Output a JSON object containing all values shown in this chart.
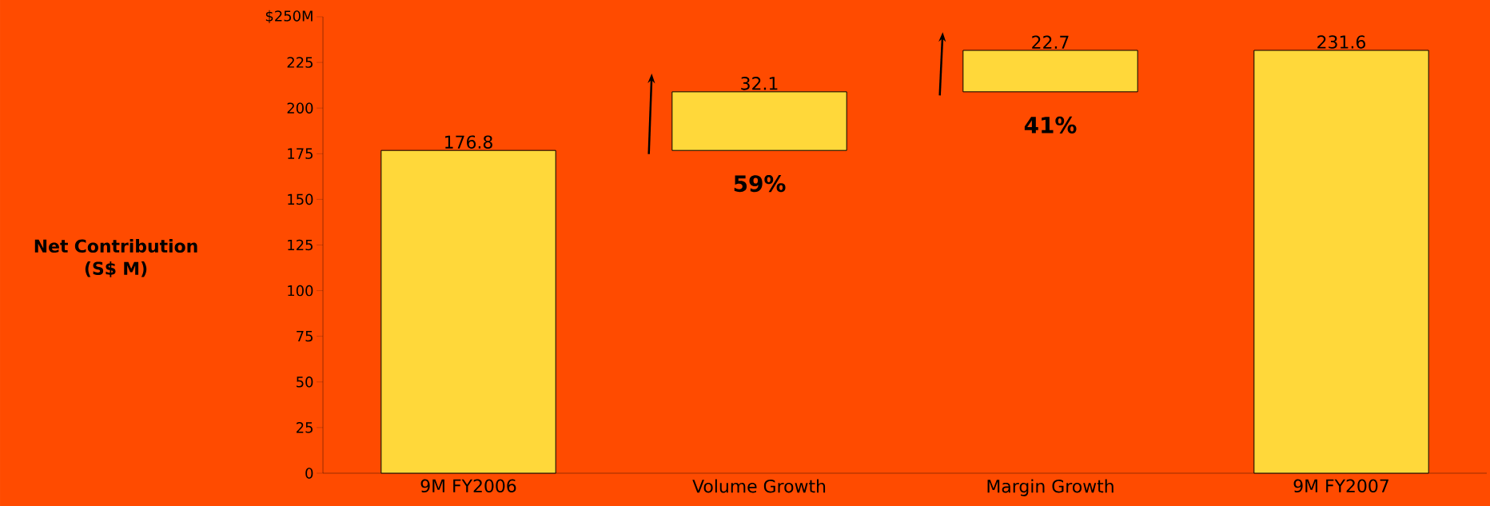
{
  "chart_data": {
    "type": "bar",
    "categories": [
      "9M FY2006",
      "Volume Growth",
      "Margin Growth",
      "9M FY2007"
    ],
    "values": [
      176.8,
      32.1,
      22.7,
      231.6
    ],
    "base": [
      0,
      176.8,
      208.9,
      0
    ],
    "value_labels": [
      "176.8",
      "32.1",
      "22.7",
      "231.6"
    ],
    "color": "#ffd83a",
    "ylabel": "Net Contribution (S$ M)",
    "ylim": [
      0,
      250
    ],
    "yticks": [
      0,
      25,
      50,
      75,
      100,
      125,
      150,
      175,
      200,
      225,
      {
        "value": 250,
        "label": "$250M"
      }
    ],
    "annotations": [
      "59%",
      "41%"
    ],
    "grid": false
  }
}
